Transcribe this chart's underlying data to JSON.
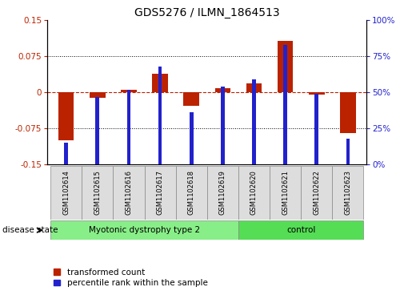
{
  "title": "GDS5276 / ILMN_1864513",
  "samples": [
    "GSM1102614",
    "GSM1102615",
    "GSM1102616",
    "GSM1102617",
    "GSM1102618",
    "GSM1102619",
    "GSM1102620",
    "GSM1102621",
    "GSM1102622",
    "GSM1102623"
  ],
  "red_values": [
    -0.1,
    -0.012,
    0.005,
    0.038,
    -0.028,
    0.008,
    0.018,
    0.108,
    -0.005,
    -0.085
  ],
  "blue_values": [
    15,
    47,
    52,
    68,
    36,
    54,
    59,
    83,
    49,
    18
  ],
  "groups": [
    {
      "label": "Myotonic dystrophy type 2",
      "start": 0,
      "end": 6,
      "color": "#88EE88"
    },
    {
      "label": "control",
      "start": 6,
      "end": 10,
      "color": "#55DD55"
    }
  ],
  "ylim_left": [
    -0.15,
    0.15
  ],
  "ylim_right": [
    0,
    100
  ],
  "yticks_left": [
    -0.15,
    -0.075,
    0,
    0.075,
    0.15
  ],
  "yticks_right": [
    0,
    25,
    50,
    75,
    100
  ],
  "ytick_labels_left": [
    "-0.15",
    "-0.075",
    "0",
    "0.075",
    "0.15"
  ],
  "ytick_labels_right": [
    "0%",
    "25%",
    "50%",
    "75%",
    "100%"
  ],
  "hlines_dotted": [
    0.075,
    -0.075
  ],
  "hline_dashed": 0,
  "red_color": "#BB2200",
  "blue_color": "#2222CC",
  "legend_red": "transformed count",
  "legend_blue": "percentile rank within the sample",
  "disease_label": "disease state",
  "red_bar_width": 0.5,
  "blue_bar_width": 0.12,
  "title_fontsize": 10,
  "tick_fontsize": 7.5,
  "label_fontsize": 7.5,
  "sample_fontsize": 6.0,
  "group_fontsize": 7.5
}
